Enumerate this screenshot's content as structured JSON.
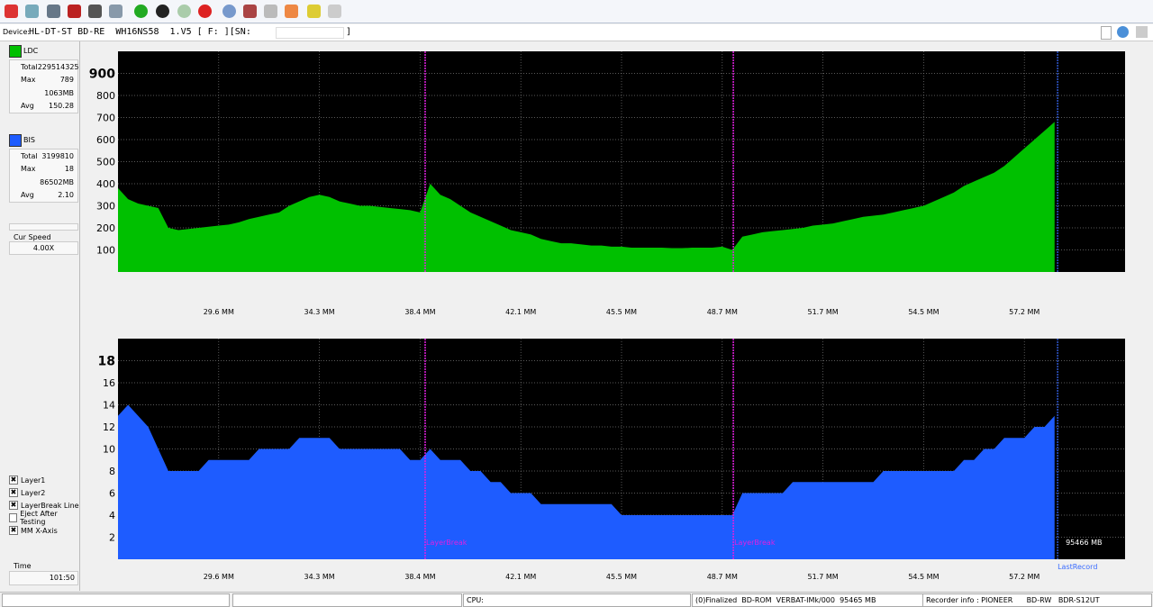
{
  "ui": {
    "device": {
      "label": "Device:",
      "text": "HL-DT-ST BD-RE  WH16NS58  1.V5 [ F: ][SN:",
      "end": "]"
    },
    "ldc": {
      "name": "LDC",
      "color": "#00c000",
      "rows": [
        [
          "Total",
          "229514325"
        ],
        [
          "Max",
          "789"
        ],
        [
          "",
          "1063MB"
        ],
        [
          "Avg",
          "150.28"
        ]
      ]
    },
    "bis": {
      "name": "BIS",
      "color": "#1e5cff",
      "rows": [
        [
          "Total",
          "3199810"
        ],
        [
          "Max",
          "18"
        ],
        [
          "",
          "86502MB"
        ],
        [
          "Avg",
          "2.10"
        ]
      ]
    },
    "speed": {
      "label": "Cur Speed",
      "value": "4.00X"
    },
    "options": [
      {
        "label": "Layer1",
        "checked": true
      },
      {
        "label": "Layer2",
        "checked": true
      },
      {
        "label": "LayerBreak Line",
        "checked": true
      },
      {
        "label": "Eject After Testing",
        "checked": false
      },
      {
        "label": "MM X-Axis",
        "checked": true
      }
    ],
    "time": {
      "label": "Time",
      "value": "101:50"
    },
    "status": {
      "cpu": "CPU:",
      "disc": "(0)Finalized  BD-ROM  VERBAT-IMk/000  95465 MB",
      "recorder": "Recorder info : PIONEER      BD-RW   BDR-S12UT"
    }
  },
  "chart_data": [
    {
      "type": "area",
      "color": "#00c000",
      "xlim": [
        0,
        100
      ],
      "ylim": [
        0,
        1000
      ],
      "grid": true,
      "yticks": [
        100,
        200,
        300,
        400,
        500,
        600,
        700,
        800,
        900
      ],
      "xticks": [
        {
          "value": 10,
          "label": "29.6 MM"
        },
        {
          "value": 20,
          "label": "34.3 MM"
        },
        {
          "value": 30,
          "label": "38.4 MM"
        },
        {
          "value": 40,
          "label": "42.1 MM"
        },
        {
          "value": 50,
          "label": "45.5 MM"
        },
        {
          "value": 60,
          "label": "48.7 MM"
        },
        {
          "value": 70,
          "label": "51.7 MM"
        },
        {
          "value": 80,
          "label": "54.5 MM"
        },
        {
          "value": 90,
          "label": "57.2 MM"
        }
      ],
      "layer_breaks": [
        30.5,
        61.1
      ],
      "last_record": 93.3,
      "x": [
        0,
        1,
        2,
        3,
        4,
        5,
        6,
        7,
        8,
        9,
        10,
        11,
        12,
        13,
        14,
        15,
        16,
        17,
        18,
        19,
        20,
        21,
        22,
        23,
        24,
        25,
        26,
        27,
        28,
        29,
        30,
        31,
        32,
        33,
        34,
        35,
        36,
        37,
        38,
        39,
        40,
        41,
        42,
        43,
        44,
        45,
        46,
        47,
        48,
        49,
        50,
        51,
        52,
        53,
        54,
        55,
        56,
        57,
        58,
        59,
        60,
        61,
        62,
        63,
        64,
        65,
        66,
        67,
        68,
        69,
        70,
        71,
        72,
        73,
        74,
        75,
        76,
        77,
        78,
        79,
        80,
        81,
        82,
        83,
        84,
        85,
        86,
        87,
        88,
        89,
        90,
        91,
        92,
        93
      ],
      "values": [
        380,
        330,
        310,
        300,
        290,
        200,
        190,
        195,
        200,
        205,
        210,
        215,
        225,
        240,
        250,
        260,
        270,
        300,
        320,
        340,
        350,
        340,
        320,
        310,
        300,
        300,
        295,
        290,
        285,
        280,
        270,
        400,
        350,
        330,
        300,
        270,
        250,
        230,
        210,
        190,
        180,
        170,
        150,
        140,
        130,
        130,
        125,
        120,
        120,
        115,
        115,
        110,
        110,
        110,
        110,
        108,
        108,
        110,
        110,
        110,
        115,
        100,
        160,
        170,
        180,
        185,
        190,
        195,
        200,
        210,
        215,
        220,
        230,
        240,
        250,
        255,
        260,
        270,
        280,
        290,
        300,
        320,
        340,
        360,
        390,
        410,
        430,
        450,
        480,
        520,
        560,
        600,
        640,
        680
      ]
    },
    {
      "type": "area",
      "color": "#1e5cff",
      "xlim": [
        0,
        100
      ],
      "ylim": [
        0,
        20
      ],
      "grid": true,
      "yticks": [
        2,
        4,
        6,
        8,
        10,
        12,
        14,
        16,
        18
      ],
      "xticks": [
        {
          "value": 10,
          "label": "29.6 MM"
        },
        {
          "value": 20,
          "label": "34.3 MM"
        },
        {
          "value": 30,
          "label": "38.4 MM"
        },
        {
          "value": 40,
          "label": "42.1 MM"
        },
        {
          "value": 50,
          "label": "45.5 MM"
        },
        {
          "value": 60,
          "label": "48.7 MM"
        },
        {
          "value": 70,
          "label": "51.7 MM"
        },
        {
          "value": 80,
          "label": "54.5 MM"
        },
        {
          "value": 90,
          "label": "57.2 MM"
        }
      ],
      "layer_breaks": [
        30.5,
        61.1
      ],
      "layer_break_label": "LayerBreak",
      "last_record": 93.3,
      "last_record_label": "LastRecord",
      "size_label": "95466 MB",
      "x": [
        0,
        1,
        2,
        3,
        4,
        5,
        6,
        7,
        8,
        9,
        10,
        11,
        12,
        13,
        14,
        15,
        16,
        17,
        18,
        19,
        20,
        21,
        22,
        23,
        24,
        25,
        26,
        27,
        28,
        29,
        30,
        31,
        32,
        33,
        34,
        35,
        36,
        37,
        38,
        39,
        40,
        41,
        42,
        43,
        44,
        45,
        46,
        47,
        48,
        49,
        50,
        51,
        52,
        53,
        54,
        55,
        56,
        57,
        58,
        59,
        60,
        61,
        62,
        63,
        64,
        65,
        66,
        67,
        68,
        69,
        70,
        71,
        72,
        73,
        74,
        75,
        76,
        77,
        78,
        79,
        80,
        81,
        82,
        83,
        84,
        85,
        86,
        87,
        88,
        89,
        90,
        91,
        92,
        93
      ],
      "values": [
        13,
        14,
        13,
        12,
        10,
        8,
        8,
        8,
        8,
        9,
        9,
        9,
        9,
        9,
        10,
        10,
        10,
        10,
        11,
        11,
        11,
        11,
        10,
        10,
        10,
        10,
        10,
        10,
        10,
        9,
        9,
        10,
        9,
        9,
        9,
        8,
        8,
        7,
        7,
        6,
        6,
        6,
        5,
        5,
        5,
        5,
        5,
        5,
        5,
        5,
        4,
        4,
        4,
        4,
        4,
        4,
        4,
        4,
        4,
        4,
        4,
        4,
        6,
        6,
        6,
        6,
        6,
        7,
        7,
        7,
        7,
        7,
        7,
        7,
        7,
        7,
        8,
        8,
        8,
        8,
        8,
        8,
        8,
        8,
        9,
        9,
        10,
        10,
        11,
        11,
        11,
        12,
        12,
        13
      ]
    }
  ]
}
